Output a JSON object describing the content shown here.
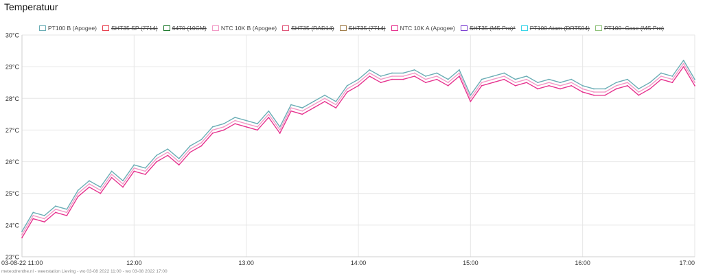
{
  "chart_data": {
    "type": "line",
    "title": "Temperatuur",
    "xlabel": "",
    "ylabel": "",
    "ylim": [
      23,
      30
    ],
    "yticks": [
      "23°C",
      "24°C",
      "25°C",
      "26°C",
      "27°C",
      "28°C",
      "29°C",
      "30°C"
    ],
    "xlim": [
      "11:00",
      "17:00"
    ],
    "xticks": [
      {
        "t": 0,
        "label": "03-08-22 11:00"
      },
      {
        "t": 60,
        "label": "12:00"
      },
      {
        "t": 120,
        "label": "13:00"
      },
      {
        "t": 180,
        "label": "14:00"
      },
      {
        "t": 240,
        "label": "15:00"
      },
      {
        "t": 300,
        "label": "16:00"
      },
      {
        "t": 360,
        "label": "17:00"
      }
    ],
    "grid": true,
    "legend_position": "top",
    "legend": [
      {
        "name": "PT100 B (Apogee)",
        "color": "#6aadb5",
        "hidden": false
      },
      {
        "name": "SHT35 SP (7714)",
        "color": "#e8404f",
        "hidden": true
      },
      {
        "name": "6470 (10CM)",
        "color": "#1f7a2e",
        "hidden": true
      },
      {
        "name": "NTC 10K B (Apogee)",
        "color": "#f29ac6",
        "hidden": false
      },
      {
        "name": "SHT35 (RAD14)",
        "color": "#e0577a",
        "hidden": true
      },
      {
        "name": "SHT35 (7714)",
        "color": "#a07d4a",
        "hidden": true
      },
      {
        "name": "NTC 10K A (Apogee)",
        "color": "#e6338f",
        "hidden": false
      },
      {
        "name": "SHT35 (MS Pro)*",
        "color": "#7b3fd1",
        "hidden": true
      },
      {
        "name": "PT100 Atom (DRT504)",
        "color": "#39d4e8",
        "hidden": true
      },
      {
        "name": "PT100+Case (MS Pro)",
        "color": "#8fc27a",
        "hidden": true
      }
    ],
    "series": [
      {
        "name": "PT100 B (Apogee)",
        "color": "#6aadb5",
        "x": [
          0,
          6,
          12,
          18,
          24,
          30,
          36,
          42,
          48,
          54,
          60,
          66,
          72,
          78,
          84,
          90,
          96,
          102,
          108,
          114,
          120,
          126,
          132,
          138,
          144,
          150,
          156,
          162,
          168,
          174,
          180,
          186,
          192,
          198,
          204,
          210,
          216,
          222,
          228,
          234,
          240,
          246,
          252,
          258,
          264,
          270,
          276,
          282,
          288,
          294,
          300,
          306,
          312,
          318,
          324,
          330,
          336,
          342,
          348,
          354,
          360
        ],
        "values": [
          23.8,
          24.4,
          24.3,
          24.6,
          24.5,
          25.1,
          25.4,
          25.2,
          25.7,
          25.4,
          25.9,
          25.8,
          26.2,
          26.4,
          26.1,
          26.5,
          26.7,
          27.1,
          27.2,
          27.4,
          27.3,
          27.2,
          27.6,
          27.1,
          27.8,
          27.7,
          27.9,
          28.1,
          27.9,
          28.4,
          28.6,
          28.9,
          28.7,
          28.8,
          28.8,
          28.9,
          28.7,
          28.8,
          28.6,
          28.9,
          28.1,
          28.6,
          28.7,
          28.8,
          28.6,
          28.7,
          28.5,
          28.6,
          28.5,
          28.6,
          28.4,
          28.3,
          28.3,
          28.5,
          28.6,
          28.3,
          28.5,
          28.8,
          28.7,
          29.2,
          28.6
        ]
      },
      {
        "name": "NTC 10K B (Apogee)",
        "color": "#f29ac6",
        "x": [
          0,
          6,
          12,
          18,
          24,
          30,
          36,
          42,
          48,
          54,
          60,
          66,
          72,
          78,
          84,
          90,
          96,
          102,
          108,
          114,
          120,
          126,
          132,
          138,
          144,
          150,
          156,
          162,
          168,
          174,
          180,
          186,
          192,
          198,
          204,
          210,
          216,
          222,
          228,
          234,
          240,
          246,
          252,
          258,
          264,
          270,
          276,
          282,
          288,
          294,
          300,
          306,
          312,
          318,
          324,
          330,
          336,
          342,
          348,
          354,
          360
        ],
        "values": [
          23.7,
          24.3,
          24.2,
          24.5,
          24.4,
          25.0,
          25.3,
          25.1,
          25.6,
          25.3,
          25.8,
          25.7,
          26.1,
          26.3,
          26.0,
          26.4,
          26.6,
          27.0,
          27.1,
          27.3,
          27.2,
          27.1,
          27.5,
          27.0,
          27.7,
          27.6,
          27.8,
          28.0,
          27.8,
          28.3,
          28.5,
          28.8,
          28.6,
          28.7,
          28.7,
          28.8,
          28.6,
          28.7,
          28.5,
          28.8,
          28.0,
          28.5,
          28.6,
          28.7,
          28.5,
          28.6,
          28.4,
          28.5,
          28.4,
          28.5,
          28.3,
          28.2,
          28.2,
          28.4,
          28.5,
          28.2,
          28.4,
          28.7,
          28.6,
          29.1,
          28.5
        ]
      },
      {
        "name": "NTC 10K A (Apogee)",
        "color": "#e6338f",
        "x": [
          0,
          6,
          12,
          18,
          24,
          30,
          36,
          42,
          48,
          54,
          60,
          66,
          72,
          78,
          84,
          90,
          96,
          102,
          108,
          114,
          120,
          126,
          132,
          138,
          144,
          150,
          156,
          162,
          168,
          174,
          180,
          186,
          192,
          198,
          204,
          210,
          216,
          222,
          228,
          234,
          240,
          246,
          252,
          258,
          264,
          270,
          276,
          282,
          288,
          294,
          300,
          306,
          312,
          318,
          324,
          330,
          336,
          342,
          348,
          354,
          360
        ],
        "values": [
          23.6,
          24.2,
          24.1,
          24.4,
          24.3,
          24.9,
          25.2,
          25.0,
          25.5,
          25.2,
          25.7,
          25.6,
          26.0,
          26.2,
          25.9,
          26.3,
          26.5,
          26.9,
          27.0,
          27.2,
          27.1,
          27.0,
          27.4,
          26.9,
          27.6,
          27.5,
          27.7,
          27.9,
          27.7,
          28.2,
          28.4,
          28.7,
          28.5,
          28.6,
          28.6,
          28.7,
          28.5,
          28.6,
          28.4,
          28.7,
          27.9,
          28.4,
          28.5,
          28.6,
          28.4,
          28.5,
          28.3,
          28.4,
          28.3,
          28.4,
          28.2,
          28.1,
          28.1,
          28.3,
          28.4,
          28.1,
          28.3,
          28.6,
          28.5,
          29.0,
          28.4
        ]
      }
    ]
  },
  "footer": {
    "text": "meteodrenthe.nl - weerstation Lieving - wo 03-08 2022 11:00 - wo 03-08 2022 17:00"
  }
}
